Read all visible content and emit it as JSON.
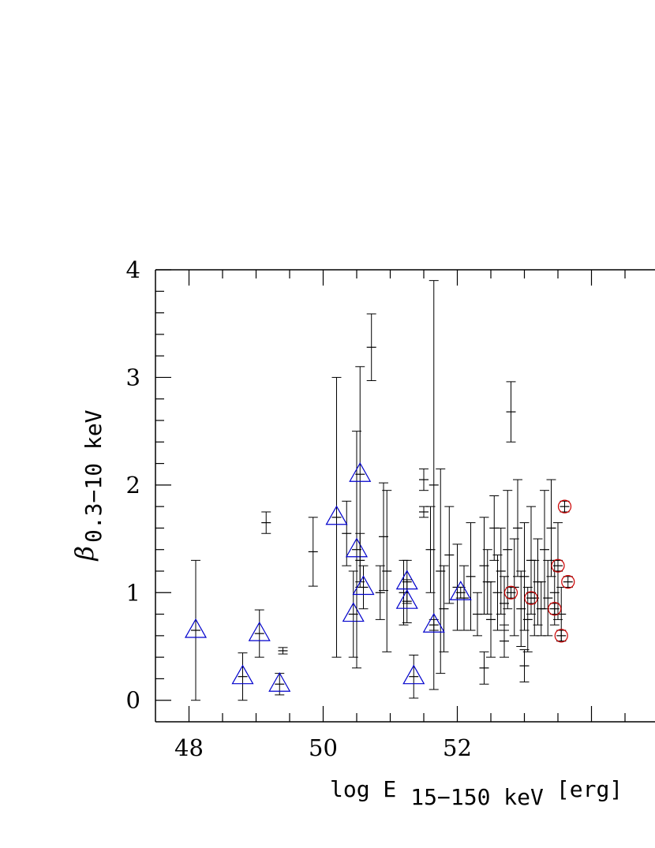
{
  "chart_data": {
    "type": "scatter",
    "xlabel": {
      "prefix": "log E",
      "subscript": "15−150 keV",
      "unit": "[erg]"
    },
    "ylabel": {
      "symbol": "β",
      "subscript": "0.3−10 keV"
    },
    "xlim": [
      47.5,
      55.3
    ],
    "ylim": [
      -0.2,
      4.0
    ],
    "xticks": [
      48,
      50,
      52
    ],
    "yticks": [
      0,
      1,
      2,
      3,
      4
    ],
    "grid": false,
    "legend": "none",
    "colors": {
      "bulk": "#000000",
      "triangles": "#0000cc",
      "circles": "#cc0000"
    },
    "series": [
      {
        "marker": "cross-errorbar",
        "points": [
          [
            49.15,
            1.65,
            0.1
          ],
          [
            49.4,
            0.46,
            0.03
          ],
          [
            49.85,
            1.38,
            0.32
          ],
          [
            50.35,
            1.55,
            0.3
          ],
          [
            50.55,
            1.3,
            0.25
          ],
          [
            50.72,
            3.28,
            0.31
          ],
          [
            50.85,
            1.0,
            0.25
          ],
          [
            50.9,
            1.52,
            0.5
          ],
          [
            50.95,
            1.2,
            0.75
          ],
          [
            51.2,
            1.0,
            0.3
          ],
          [
            51.5,
            2.05,
            0.1
          ],
          [
            51.5,
            1.75,
            0.05
          ],
          [
            51.6,
            1.4,
            0.4
          ],
          [
            51.75,
            1.2,
            0.95
          ],
          [
            51.8,
            0.85,
            0.4
          ],
          [
            51.88,
            1.35,
            0.45
          ],
          [
            52.0,
            1.05,
            0.4
          ],
          [
            52.1,
            0.95,
            0.3
          ],
          [
            52.2,
            1.15,
            0.5
          ],
          [
            52.3,
            0.8,
            0.2
          ],
          [
            52.4,
            1.25,
            0.45
          ],
          [
            52.45,
            1.1,
            0.3
          ],
          [
            52.5,
            0.75,
            0.35
          ],
          [
            52.55,
            1.6,
            0.3
          ],
          [
            52.6,
            1.0,
            0.35
          ],
          [
            52.65,
            1.2,
            0.4
          ],
          [
            52.7,
            0.9,
            0.25
          ],
          [
            52.75,
            1.4,
            0.55
          ],
          [
            52.8,
            2.68,
            0.28
          ],
          [
            52.85,
            1.05,
            0.45
          ],
          [
            52.9,
            1.6,
            0.45
          ],
          [
            52.95,
            0.85,
            0.35
          ],
          [
            53.0,
            1.15,
            0.5
          ],
          [
            53.05,
            0.75,
            0.3
          ],
          [
            53.1,
            1.3,
            0.5
          ],
          [
            53.15,
            0.95,
            0.35
          ],
          [
            53.2,
            1.1,
            0.4
          ],
          [
            53.25,
            0.85,
            0.25
          ],
          [
            53.3,
            1.4,
            0.55
          ],
          [
            53.35,
            0.95,
            0.35
          ],
          [
            53.4,
            1.6,
            0.45
          ],
          [
            53.45,
            1.0,
            0.3
          ],
          [
            53.5,
            1.2,
            0.45
          ],
          [
            53.55,
            0.8,
            0.25
          ],
          [
            51.65,
            2.0,
            1.9
          ],
          [
            52.4,
            0.3,
            0.15
          ],
          [
            53.0,
            0.32,
            0.15
          ],
          [
            52.7,
            0.55,
            0.15
          ]
        ]
      },
      {
        "marker": "triangle",
        "points": [
          [
            48.1,
            0.65,
            0.65
          ],
          [
            48.8,
            0.22,
            0.22
          ],
          [
            49.05,
            0.62,
            0.22
          ],
          [
            49.35,
            0.15,
            0.1
          ],
          [
            50.2,
            1.7,
            1.3
          ],
          [
            50.45,
            0.8,
            0.4
          ],
          [
            50.5,
            1.4,
            1.1
          ],
          [
            50.55,
            2.1,
            1.0
          ],
          [
            50.6,
            1.05,
            0.2
          ],
          [
            51.25,
            1.1,
            0.2
          ],
          [
            51.25,
            0.92,
            0.2
          ],
          [
            51.35,
            0.22,
            0.2
          ],
          [
            51.65,
            0.7,
            0.05
          ],
          [
            52.05,
            1.0,
            0.05
          ]
        ]
      },
      {
        "marker": "circle",
        "points": [
          [
            52.8,
            1.0,
            0.05
          ],
          [
            53.1,
            0.95,
            0.05
          ],
          [
            53.45,
            0.85,
            0.05
          ],
          [
            53.5,
            1.25,
            0.05
          ],
          [
            53.55,
            0.6,
            0.05
          ],
          [
            53.6,
            1.8,
            0.05
          ],
          [
            53.65,
            1.1,
            0.05
          ]
        ]
      }
    ]
  }
}
